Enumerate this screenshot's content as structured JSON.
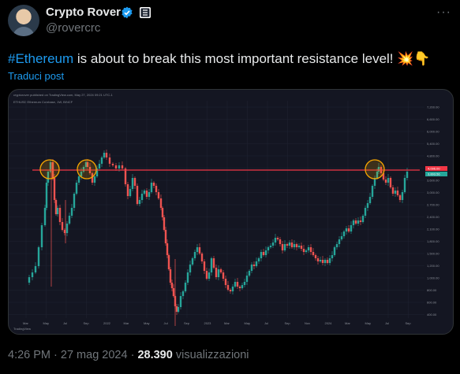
{
  "author": {
    "display_name": "Crypto Rover",
    "handle": "@rovercrc"
  },
  "tweet": {
    "hashtag": "#Ethereum",
    "text": " is about to break this most important resistance level! 💥👇",
    "translate_link": "Traduci post"
  },
  "meta": {
    "time": "4:26 PM",
    "date": "27 mag 2024",
    "separator": "·",
    "views_count": "28.390",
    "views_label": "visualizzazioni"
  },
  "chart_image": {
    "header_line": "cryptorover published on TradingView.com, May 27, 2024 09:21 UTC-1",
    "symbol_line": "ETHUSD Ethereum Coinbase, 1W, BINCF",
    "price_labels": [
      "7,200.00",
      "6,600.00",
      "6,000.00",
      "5,400.00",
      "4,800.00",
      "4,200.00",
      "3,600.00",
      "3,000.00",
      "2,700.00",
      "2,400.00",
      "2,100.00",
      "1,800.00",
      "1,500.00",
      "1,200.00",
      "1,000.00",
      "800.00",
      "600.00",
      "400.00"
    ],
    "current_price_label": "3,893.56",
    "resistance_label": "4,096.00",
    "time_labels": [
      "Mar",
      "May",
      "Jul",
      "Sep",
      "2022",
      "Mar",
      "May",
      "Jul",
      "Sep",
      "2023",
      "Mar",
      "May",
      "Jul",
      "Sep",
      "Nov",
      "2024",
      "Mar",
      "May",
      "Jul",
      "Sep"
    ],
    "watermark": "TradingView",
    "colors": {
      "up": "#26a69a",
      "down": "#ef5350",
      "resistance": "#f23645",
      "circle": "#f7a600"
    }
  }
}
